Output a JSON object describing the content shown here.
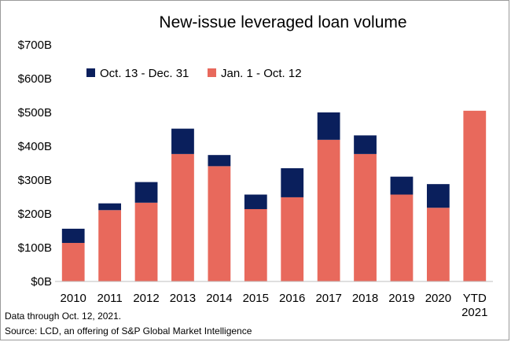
{
  "chart_data": {
    "type": "bar",
    "stacked": true,
    "title": "New-issue leveraged loan volume",
    "xlabel": "",
    "ylabel": "",
    "categories": [
      "2010",
      "2011",
      "2012",
      "2013",
      "2014",
      "2015",
      "2016",
      "2017",
      "2018",
      "2019",
      "2020",
      "YTD 2021"
    ],
    "series": [
      {
        "name": "Jan. 1 - Oct. 12",
        "color": "#e8695c",
        "values": [
          114,
          211,
          233,
          377,
          341,
          214,
          249,
          419,
          377,
          257,
          218,
          505
        ]
      },
      {
        "name": "Oct. 13 - Dec. 31",
        "color": "#0a1f5c",
        "values": [
          42,
          20,
          61,
          75,
          33,
          43,
          86,
          81,
          55,
          53,
          70,
          0
        ]
      }
    ],
    "ylim": [
      0,
      700
    ],
    "yticks": [
      0,
      100,
      200,
      300,
      400,
      500,
      600,
      700
    ],
    "ytick_labels": [
      "$0B",
      "$100B",
      "$200B",
      "$300B",
      "$400B",
      "$500B",
      "$600B",
      "$700B"
    ],
    "grid": false,
    "legend_position": "top-left",
    "legend_order": [
      "Oct. 13 - Dec. 31",
      "Jan. 1 - Oct. 12"
    ]
  },
  "footnotes": {
    "line1": "Data through Oct. 12, 2021.",
    "line2": "Source: LCD, an offering of S&P Global Market Intelligence"
  }
}
